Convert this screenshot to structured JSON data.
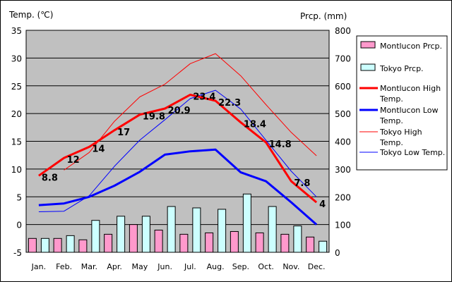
{
  "chart_data": {
    "type": "bar+line",
    "categories": [
      "Jan.",
      "Feb.",
      "Mar.",
      "Apr.",
      "May",
      "Jun.",
      "Jul.",
      "Aug.",
      "Sep.",
      "Oct.",
      "Nov.",
      "Dec."
    ],
    "y_left": {
      "label": "Temp. (℃)",
      "range": [
        -5,
        35
      ],
      "ticks": [
        "35",
        "30",
        "25",
        "20",
        "15",
        "10",
        "5",
        "0",
        "-5"
      ]
    },
    "y_right": {
      "label": "Prcp. (mm)",
      "range": [
        0,
        800
      ],
      "ticks": [
        "800",
        "700",
        "600",
        "500",
        "400",
        "300",
        "200",
        "100",
        "0"
      ]
    },
    "grid": true,
    "legend_position": "right",
    "series": [
      {
        "name": "Montlucon Prcp.",
        "type": "bar",
        "axis": "right",
        "color": "#ff99cc",
        "values": [
          50,
          50,
          45,
          65,
          100,
          80,
          65,
          70,
          75,
          70,
          65,
          55
        ]
      },
      {
        "name": "Tokyo Prcp.",
        "type": "bar",
        "axis": "right",
        "color": "#ccffff",
        "values": [
          50,
          60,
          115,
          130,
          130,
          165,
          160,
          155,
          210,
          165,
          95,
          40
        ]
      },
      {
        "name": "Montlucon High Temp.",
        "type": "line",
        "axis": "left",
        "color": "#ff0000",
        "width": 3,
        "values": [
          8.8,
          12,
          14,
          17,
          19.8,
          20.9,
          23.4,
          22.3,
          18.4,
          14.8,
          7.8,
          4
        ],
        "labels": [
          "8.8",
          "12",
          "14",
          "17",
          "19.8",
          "20.9",
          "23.4",
          "22.3",
          "18.4",
          "14.8",
          "7.8",
          "4"
        ]
      },
      {
        "name": "Montlucon Low Temp.",
        "type": "line",
        "axis": "left",
        "color": "#0000ff",
        "width": 3,
        "values": [
          3.5,
          3.8,
          5,
          7,
          9.5,
          12.6,
          13.2,
          13.5,
          9.4,
          7.8,
          4,
          0
        ]
      },
      {
        "name": "Tokyo High Temp.",
        "type": "line",
        "axis": "left",
        "color": "#ff0000",
        "width": 1,
        "values": [
          null,
          9.8,
          13,
          18.6,
          23,
          25.3,
          29,
          30.8,
          26.8,
          21.6,
          16.6,
          12.4
        ]
      },
      {
        "name": "Tokyo Low Temp.",
        "type": "line",
        "axis": "left",
        "color": "#0000ff",
        "width": 1,
        "values": [
          2.3,
          2.4,
          5.2,
          10.5,
          15.2,
          18.9,
          22.7,
          24.2,
          20.8,
          15.2,
          9.6,
          5
        ]
      }
    ]
  }
}
